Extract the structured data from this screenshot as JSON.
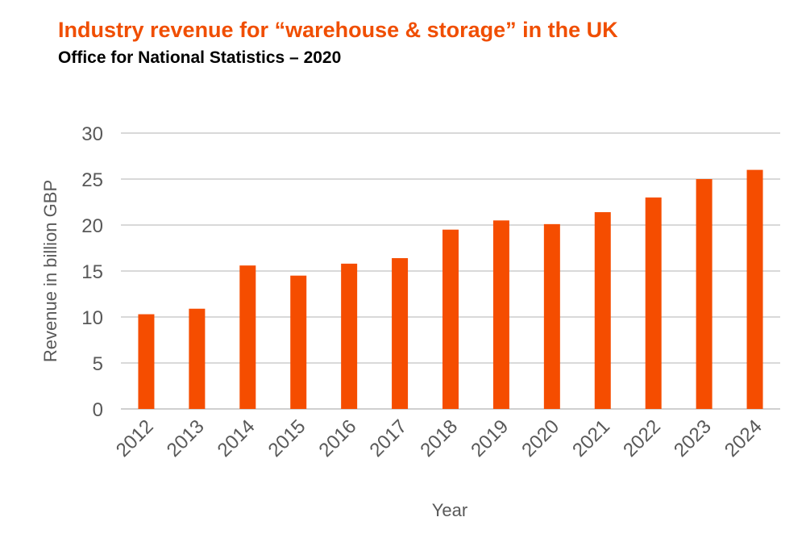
{
  "chart_data": {
    "type": "bar",
    "title": "Industry revenue for “warehouse & storage” in the UK",
    "subtitle": "Office for National Statistics – 2020",
    "xlabel": "Year",
    "ylabel": "Revenue in billion GBP",
    "categories": [
      "2012",
      "2013",
      "2014",
      "2015",
      "2016",
      "2017",
      "2018",
      "2019",
      "2020",
      "2021",
      "2022",
      "2023",
      "2024"
    ],
    "values": [
      10.3,
      10.9,
      15.6,
      14.5,
      15.8,
      16.4,
      19.5,
      20.5,
      20.1,
      21.4,
      23.0,
      25.0,
      26.0
    ],
    "ylim": [
      0,
      30
    ],
    "yticks": [
      "0",
      "5",
      "10",
      "15",
      "20",
      "25",
      "30"
    ],
    "grid": true,
    "legend": "none",
    "bar_color": "#f54d00",
    "title_color": "#f04e00"
  }
}
